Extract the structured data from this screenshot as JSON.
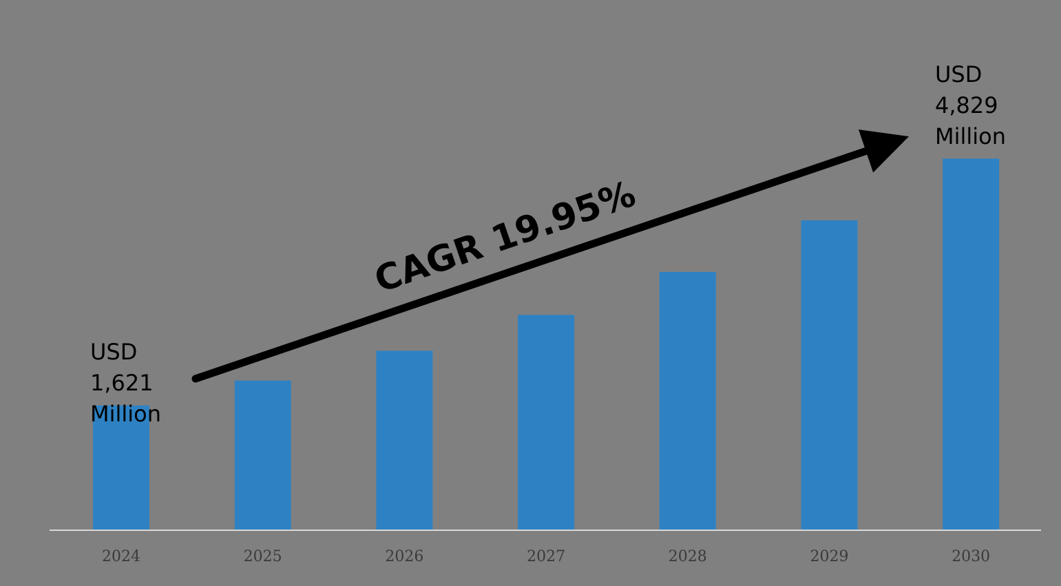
{
  "colors": {
    "background": "#808080",
    "bar": "#2e82c3",
    "axis": "#d9d9d9",
    "arrow": "#000000",
    "tick_text": "#3a3a3a"
  },
  "annotations": {
    "start": [
      "USD",
      "1,621",
      "Million"
    ],
    "end": [
      "USD",
      "4,829",
      "Million"
    ],
    "cagr": "CAGR 19.95%"
  },
  "chart_data": {
    "type": "bar",
    "categories": [
      "2024",
      "2025",
      "2026",
      "2027",
      "2028",
      "2029",
      "2030"
    ],
    "values": [
      1621,
      1945,
      2332,
      2798,
      3356,
      4026,
      4829
    ],
    "ylim": [
      0,
      5100
    ],
    "grid": false,
    "legend": "none",
    "annotations": [
      "USD 1,621 Million",
      "USD 4,829 Million",
      "CAGR 19.95%"
    ]
  }
}
